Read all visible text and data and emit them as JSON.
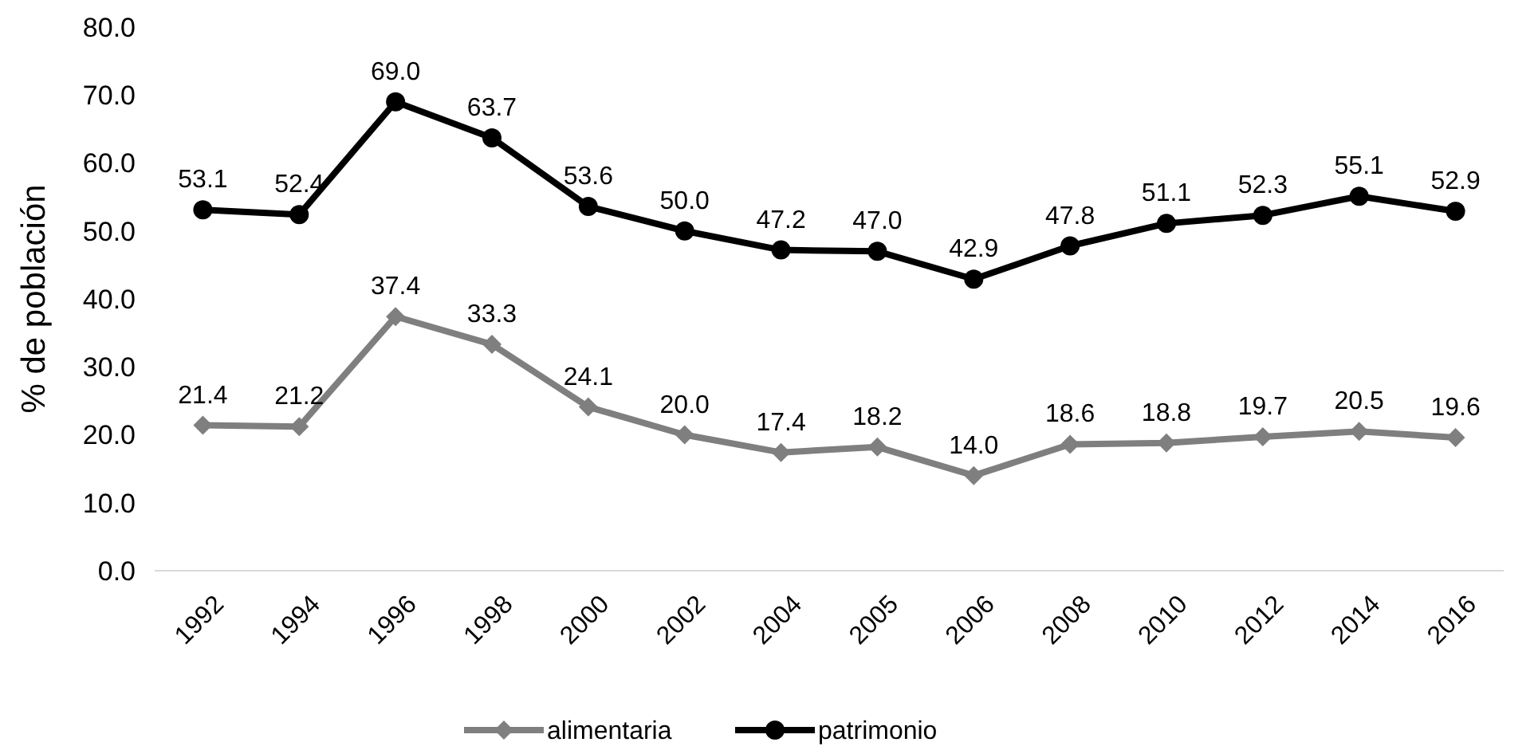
{
  "chart_data": {
    "type": "line",
    "ylabel": "% de población",
    "categories": [
      "1992",
      "1994",
      "1996",
      "1998",
      "2000",
      "2002",
      "2004",
      "2005",
      "2006",
      "2008",
      "2010",
      "2012",
      "2014",
      "2016"
    ],
    "series": [
      {
        "name": "alimentaria",
        "color": "#7f7f7f",
        "marker": "diamond",
        "values": [
          21.4,
          21.2,
          37.4,
          33.3,
          24.1,
          20,
          17.4,
          18.2,
          14,
          18.6,
          18.8,
          19.7,
          20.5,
          19.6
        ],
        "value_labels": [
          "21.4",
          "21.2",
          "37.4",
          "33.3",
          "24.1",
          "20.0",
          "17.4",
          "18.2",
          "14.0",
          "18.6",
          "18.8",
          "19.7",
          "20.5",
          "19.6"
        ]
      },
      {
        "name": "patrimonio",
        "color": "#000000",
        "marker": "circle",
        "values": [
          53.1,
          52.4,
          69,
          63.7,
          53.6,
          50,
          47.2,
          47,
          42.9,
          47.8,
          51.1,
          52.3,
          55.1,
          52.9
        ],
        "value_labels": [
          "53.1",
          "52.4",
          "69.0",
          "63.7",
          "53.6",
          "50.0",
          "47.2",
          "47.0",
          "42.9",
          "47.8",
          "51.1",
          "52.3",
          "55.1",
          "52.9"
        ]
      }
    ],
    "ylim": [
      0,
      80
    ],
    "yticks": [
      {
        "value": 0,
        "label": "0.0"
      },
      {
        "value": 10,
        "label": "10.0"
      },
      {
        "value": 20,
        "label": "20.0"
      },
      {
        "value": 30,
        "label": "30.0"
      },
      {
        "value": 40,
        "label": "40.0"
      },
      {
        "value": 50,
        "label": "50.0"
      },
      {
        "value": 60,
        "label": "60.0"
      },
      {
        "value": 70,
        "label": "70.0"
      },
      {
        "value": 80,
        "label": "80.0"
      }
    ],
    "legend": "bottom",
    "grid": false,
    "line_style": "solid"
  }
}
